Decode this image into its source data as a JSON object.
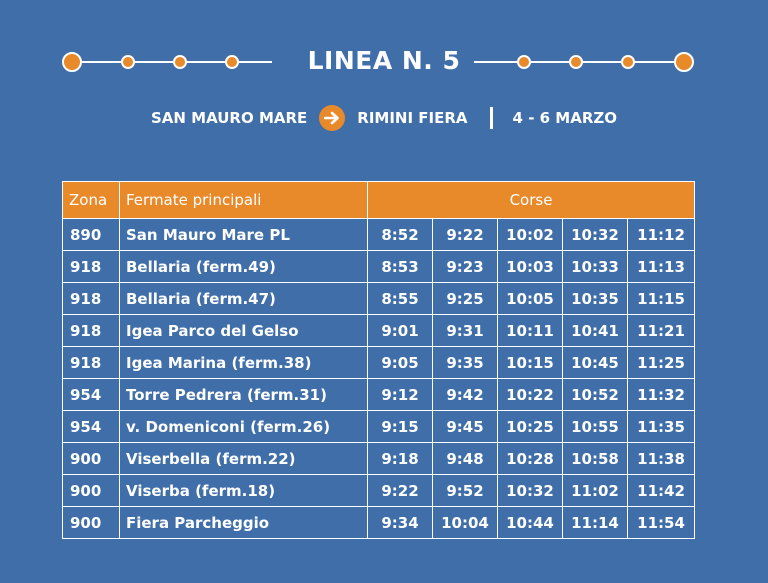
{
  "header": {
    "title": "LINEA N. 5",
    "origin": "SAN MAURO MARE",
    "destination": "RIMINI FIERA",
    "dates": "4 - 6 MARZO"
  },
  "colors": {
    "background": "#3f6ea9",
    "accent": "#e8892a",
    "text": "#ffffff"
  },
  "icons": {
    "route_arrow": "arrow-right-icon"
  },
  "table": {
    "headers": {
      "zone": "Zona",
      "stops": "Fermate principali",
      "runs": "Corse"
    },
    "rows": [
      {
        "zone": "890",
        "stop": "San Mauro Mare PL",
        "times": [
          "8:52",
          "9:22",
          "10:02",
          "10:32",
          "11:12"
        ]
      },
      {
        "zone": "918",
        "stop": "Bellaria (ferm.49)",
        "times": [
          "8:53",
          "9:23",
          "10:03",
          "10:33",
          "11:13"
        ]
      },
      {
        "zone": "918",
        "stop": "Bellaria (ferm.47)",
        "times": [
          "8:55",
          "9:25",
          "10:05",
          "10:35",
          "11:15"
        ]
      },
      {
        "zone": "918",
        "stop": "Igea Parco del Gelso",
        "times": [
          "9:01",
          "9:31",
          "10:11",
          "10:41",
          "11:21"
        ]
      },
      {
        "zone": "918",
        "stop": "Igea Marina (ferm.38)",
        "times": [
          "9:05",
          "9:35",
          "10:15",
          "10:45",
          "11:25"
        ]
      },
      {
        "zone": "954",
        "stop": "Torre Pedrera (ferm.31)",
        "times": [
          "9:12",
          "9:42",
          "10:22",
          "10:52",
          "11:32"
        ]
      },
      {
        "zone": "954",
        "stop": "v. Domeniconi (ferm.26)",
        "times": [
          "9:15",
          "9:45",
          "10:25",
          "10:55",
          "11:35"
        ]
      },
      {
        "zone": "900",
        "stop": "Viserbella (ferm.22)",
        "times": [
          "9:18",
          "9:48",
          "10:28",
          "10:58",
          "11:38"
        ]
      },
      {
        "zone": "900",
        "stop": "Viserba (ferm.18)",
        "times": [
          "9:22",
          "9:52",
          "10:32",
          "11:02",
          "11:42"
        ]
      },
      {
        "zone": "900",
        "stop": "Fiera Parcheggio",
        "times": [
          "9:34",
          "10:04",
          "10:44",
          "11:14",
          "11:54"
        ]
      }
    ]
  }
}
